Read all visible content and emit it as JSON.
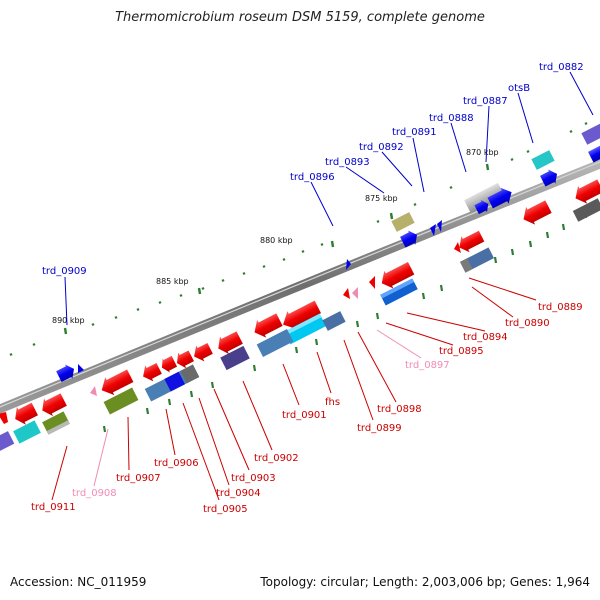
{
  "title": "Thermomicrobium roseum DSM 5159, complete genome",
  "footer": {
    "accession": "Accession: NC_011959",
    "summary": "Topology: circular; Length: 2,003,006 bp; Genes: 1,964"
  },
  "colors": {
    "backbone": "#8a8a8a",
    "tick": "#2e7d32",
    "forward_label": "#0000cc",
    "reverse_label": "#cc0000",
    "pseudo_label": "#f08cb4"
  },
  "scale_labels": [
    {
      "text": "870 kbp"
    },
    {
      "text": "875 kbp"
    },
    {
      "text": "880 kbp"
    },
    {
      "text": "885 kbp"
    },
    {
      "text": "890 kbp"
    }
  ],
  "gene_labels": [
    {
      "text": "trd_0882",
      "strand": "forward"
    },
    {
      "text": "otsB",
      "strand": "forward"
    },
    {
      "text": "trd_0887",
      "strand": "forward"
    },
    {
      "text": "trd_0888",
      "strand": "forward"
    },
    {
      "text": "trd_0891",
      "strand": "forward"
    },
    {
      "text": "trd_0892",
      "strand": "forward"
    },
    {
      "text": "trd_0893",
      "strand": "forward"
    },
    {
      "text": "trd_0896",
      "strand": "forward"
    },
    {
      "text": "trd_0909",
      "strand": "forward"
    },
    {
      "text": "trd_0889",
      "strand": "reverse"
    },
    {
      "text": "trd_0890",
      "strand": "reverse"
    },
    {
      "text": "trd_0894",
      "strand": "reverse"
    },
    {
      "text": "trd_0895",
      "strand": "reverse"
    },
    {
      "text": "trd_0897",
      "strand": "pseudo"
    },
    {
      "text": "trd_0898",
      "strand": "reverse"
    },
    {
      "text": "trd_0899",
      "strand": "reverse"
    },
    {
      "text": "fhs",
      "strand": "reverse"
    },
    {
      "text": "trd_0901",
      "strand": "reverse"
    },
    {
      "text": "trd_0902",
      "strand": "reverse"
    },
    {
      "text": "trd_0903",
      "strand": "reverse"
    },
    {
      "text": "trd_0904",
      "strand": "reverse"
    },
    {
      "text": "trd_0905",
      "strand": "reverse"
    },
    {
      "text": "trd_0906",
      "strand": "reverse"
    },
    {
      "text": "trd_0907",
      "strand": "reverse"
    },
    {
      "text": "trd_0908",
      "strand": "pseudo"
    },
    {
      "text": "trd_0911",
      "strand": "reverse"
    }
  ]
}
